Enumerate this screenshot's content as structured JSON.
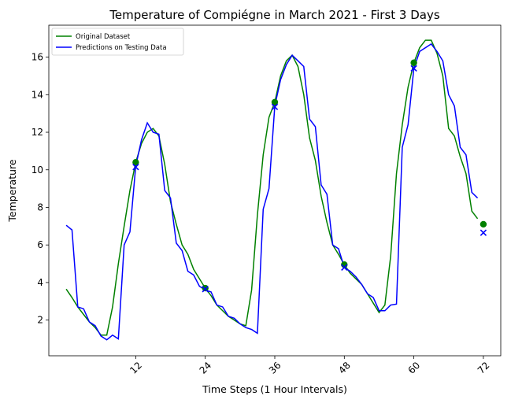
{
  "chart_data": {
    "type": "line",
    "title": "Temperature of Compiégne in March 2021 - First 3 Days",
    "x_label": "Time Steps (1 Hour Intervals)",
    "y_label": "Temperature",
    "x": [
      0,
      1,
      2,
      3,
      4,
      5,
      6,
      7,
      8,
      9,
      10,
      11,
      12,
      13,
      14,
      15,
      16,
      17,
      18,
      19,
      20,
      21,
      22,
      23,
      24,
      25,
      26,
      27,
      28,
      29,
      30,
      31,
      32,
      33,
      34,
      35,
      36,
      37,
      38,
      39,
      40,
      41,
      42,
      43,
      44,
      45,
      46,
      47,
      48,
      49,
      50,
      51,
      52,
      53,
      54,
      55,
      56,
      57,
      58,
      59,
      60,
      61,
      62,
      63,
      64,
      65,
      66,
      67,
      68,
      69,
      70,
      71
    ],
    "series": [
      {
        "name": "Original Dataset",
        "color": "#008000",
        "values": [
          3.65,
          3.2,
          2.7,
          2.3,
          1.9,
          1.6,
          1.2,
          1.2,
          2.7,
          5.0,
          7.0,
          8.9,
          10.4,
          11.4,
          12.0,
          12.2,
          11.8,
          10.3,
          8.3,
          7.1,
          6.0,
          5.5,
          4.7,
          4.2,
          3.7,
          3.3,
          2.8,
          2.5,
          2.2,
          2.0,
          1.8,
          1.7,
          3.6,
          7.6,
          10.8,
          12.8,
          13.6,
          15.0,
          15.8,
          16.1,
          15.5,
          14.0,
          11.7,
          10.5,
          8.6,
          7.2,
          6.0,
          5.5,
          4.95,
          4.5,
          4.2,
          3.9,
          3.4,
          2.9,
          2.4,
          2.8,
          5.4,
          9.8,
          12.4,
          14.4,
          15.7,
          16.5,
          16.9,
          16.9,
          16.2,
          15.0,
          12.2,
          11.8,
          10.7,
          9.8,
          7.8,
          7.4
        ]
      },
      {
        "name": "Predictions on Testing Data",
        "color": "#0000ff",
        "values": [
          7.05,
          6.8,
          2.7,
          2.6,
          1.9,
          1.7,
          1.15,
          0.95,
          1.2,
          1.0,
          6.0,
          6.7,
          10.2,
          11.6,
          12.5,
          12.0,
          11.9,
          8.9,
          8.5,
          6.1,
          5.7,
          4.6,
          4.4,
          3.8,
          3.6,
          3.5,
          2.8,
          2.7,
          2.2,
          2.1,
          1.8,
          1.6,
          1.5,
          1.3,
          7.9,
          9.0,
          13.4,
          14.8,
          15.6,
          16.1,
          15.8,
          15.5,
          12.7,
          12.3,
          9.2,
          8.7,
          6.0,
          5.8,
          4.8,
          4.6,
          4.3,
          3.9,
          3.4,
          3.2,
          2.5,
          2.5,
          2.8,
          2.85,
          11.2,
          12.4,
          15.4,
          16.3,
          16.5,
          16.7,
          16.3,
          15.8,
          14.0,
          13.4,
          11.2,
          10.8,
          8.8,
          8.5
        ]
      }
    ],
    "markers": [
      {
        "marker": "o",
        "color": "#008000",
        "x": [
          12,
          24,
          36,
          48,
          60,
          72
        ],
        "values": [
          10.4,
          3.7,
          13.6,
          4.95,
          15.7,
          7.1
        ]
      },
      {
        "marker": "x",
        "color": "#0000ff",
        "x": [
          12,
          24,
          36,
          48,
          60,
          72
        ],
        "values": [
          10.15,
          3.65,
          13.35,
          4.8,
          15.4,
          6.65
        ]
      }
    ],
    "xlim": [
      -3,
      75
    ],
    "ylim": [
      0.1,
      17.7
    ],
    "xticks": [
      12,
      24,
      36,
      48,
      60,
      72
    ],
    "yticks": [
      2,
      4,
      6,
      8,
      10,
      12,
      14,
      16
    ],
    "xtick_rotation": 45,
    "legend": "upper left"
  }
}
